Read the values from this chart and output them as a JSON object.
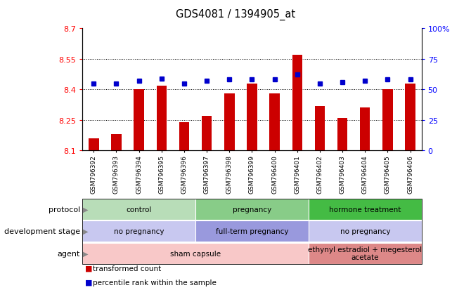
{
  "title": "GDS4081 / 1394905_at",
  "samples": [
    "GSM796392",
    "GSM796393",
    "GSM796394",
    "GSM796395",
    "GSM796396",
    "GSM796397",
    "GSM796398",
    "GSM796399",
    "GSM796400",
    "GSM796401",
    "GSM796402",
    "GSM796403",
    "GSM796404",
    "GSM796405",
    "GSM796406"
  ],
  "bar_values": [
    8.16,
    8.18,
    8.4,
    8.42,
    8.24,
    8.27,
    8.38,
    8.43,
    8.38,
    8.57,
    8.32,
    8.26,
    8.31,
    8.4,
    8.43
  ],
  "percentile_values": [
    55,
    55,
    57,
    59,
    55,
    57,
    58,
    58,
    58,
    62,
    55,
    56,
    57,
    58,
    58
  ],
  "bar_color": "#cc0000",
  "dot_color": "#0000cc",
  "ylim_left": [
    8.1,
    8.7
  ],
  "ylim_right": [
    0,
    100
  ],
  "yticks_left": [
    8.1,
    8.25,
    8.4,
    8.55,
    8.7
  ],
  "yticks_right": [
    0,
    25,
    50,
    75,
    100
  ],
  "ytick_labels_right": [
    "0",
    "25",
    "50",
    "75",
    "100%"
  ],
  "grid_vals": [
    8.25,
    8.4,
    8.55
  ],
  "protocol_groups": [
    {
      "label": "control",
      "start": 0,
      "end": 5,
      "color": "#b8ddb8"
    },
    {
      "label": "pregnancy",
      "start": 5,
      "end": 10,
      "color": "#88cc88"
    },
    {
      "label": "hormone treatment",
      "start": 10,
      "end": 15,
      "color": "#44bb44"
    }
  ],
  "dev_stage_groups": [
    {
      "label": "no pregnancy",
      "start": 0,
      "end": 5,
      "color": "#c8c8f0"
    },
    {
      "label": "full-term pregnancy",
      "start": 5,
      "end": 10,
      "color": "#9999dd"
    },
    {
      "label": "no pregnancy",
      "start": 10,
      "end": 15,
      "color": "#c8c8f0"
    }
  ],
  "agent_groups": [
    {
      "label": "sham capsule",
      "start": 0,
      "end": 10,
      "color": "#f8c8c8"
    },
    {
      "label": "ethynyl estradiol + megesterol\nacetate",
      "start": 10,
      "end": 15,
      "color": "#dd8888"
    }
  ],
  "row_labels": [
    "protocol",
    "development stage",
    "agent"
  ],
  "legend_items": [
    {
      "label": "transformed count",
      "color": "#cc0000"
    },
    {
      "label": "percentile rank within the sample",
      "color": "#0000cc"
    }
  ]
}
